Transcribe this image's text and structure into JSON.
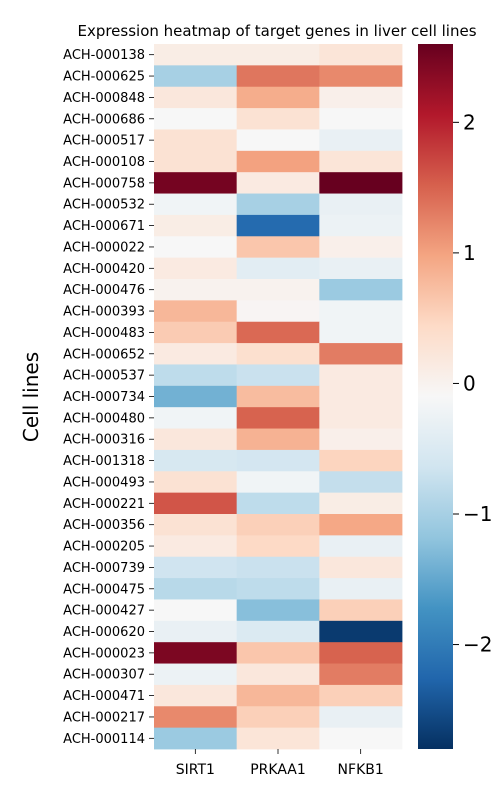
{
  "chart_data": {
    "type": "heatmap",
    "title": "Expression heatmap of target genes in liver cell lines",
    "xlabel": "",
    "ylabel": "Cell lines",
    "columns": [
      "SIRT1",
      "PRKAA1",
      "NFKB1"
    ],
    "rows": [
      "ACH-000138",
      "ACH-000625",
      "ACH-000848",
      "ACH-000686",
      "ACH-000517",
      "ACH-000108",
      "ACH-000758",
      "ACH-000532",
      "ACH-000671",
      "ACH-000022",
      "ACH-000420",
      "ACH-000476",
      "ACH-000393",
      "ACH-000483",
      "ACH-000652",
      "ACH-000537",
      "ACH-000734",
      "ACH-000480",
      "ACH-000316",
      "ACH-001318",
      "ACH-000493",
      "ACH-000221",
      "ACH-000356",
      "ACH-000205",
      "ACH-000739",
      "ACH-000475",
      "ACH-000427",
      "ACH-000620",
      "ACH-000023",
      "ACH-000307",
      "ACH-000471",
      "ACH-000217",
      "ACH-000114"
    ],
    "values": [
      [
        0.1,
        0.1,
        0.25
      ],
      [
        -1.0,
        1.35,
        1.2
      ],
      [
        0.2,
        0.9,
        0.05
      ],
      [
        -0.1,
        0.3,
        -0.1
      ],
      [
        0.3,
        -0.1,
        -0.3
      ],
      [
        0.3,
        1.0,
        0.25
      ],
      [
        2.5,
        0.15,
        2.6
      ],
      [
        -0.2,
        -1.0,
        -0.3
      ],
      [
        0.1,
        -2.2,
        -0.25
      ],
      [
        -0.1,
        0.65,
        0.05
      ],
      [
        0.15,
        -0.4,
        -0.3
      ],
      [
        0.0,
        0.0,
        -1.1
      ],
      [
        0.8,
        -0.05,
        -0.2
      ],
      [
        0.6,
        1.45,
        -0.2
      ],
      [
        0.15,
        0.35,
        1.3
      ],
      [
        -0.8,
        -0.7,
        0.15
      ],
      [
        -1.4,
        0.75,
        0.15
      ],
      [
        -0.2,
        1.5,
        0.15
      ],
      [
        0.2,
        0.85,
        0.05
      ],
      [
        -0.55,
        -0.6,
        0.5
      ],
      [
        0.3,
        -0.2,
        -0.75
      ],
      [
        1.6,
        -0.8,
        0.1
      ],
      [
        0.3,
        0.55,
        0.95
      ],
      [
        0.15,
        0.45,
        -0.3
      ],
      [
        -0.65,
        -0.7,
        0.2
      ],
      [
        -0.85,
        -0.8,
        -0.3
      ],
      [
        -0.1,
        -1.25,
        0.55
      ],
      [
        -0.3,
        -0.5,
        -2.7
      ],
      [
        2.45,
        0.65,
        1.5
      ],
      [
        -0.25,
        0.2,
        1.3
      ],
      [
        0.2,
        0.8,
        0.55
      ],
      [
        1.2,
        0.55,
        -0.3
      ],
      [
        -1.1,
        0.25,
        -0.1
      ]
    ],
    "colormap": "RdBu_r",
    "vmin": -2.8,
    "vmax": 2.6,
    "colorbar_ticks": [
      -2,
      -1,
      0,
      1,
      2
    ],
    "colorbar_tick_labels": [
      "−2",
      "−1",
      "0",
      "1",
      "2"
    ]
  }
}
